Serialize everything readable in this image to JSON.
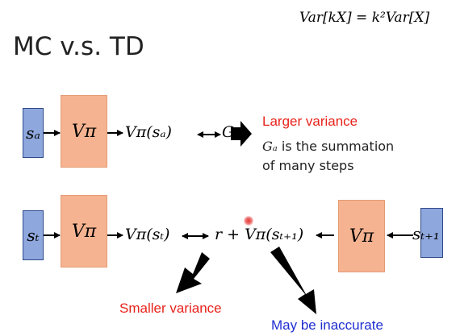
{
  "slide": {
    "title": "MC v.s. TD",
    "formula": "Var[kX] = k²Var[X]"
  },
  "mc_row": {
    "input_state": "sₐ",
    "network": "Vπ",
    "output": "Vπ(sₐ)",
    "target": "Gₐ",
    "result_heading": "Larger variance",
    "result_note_var": "Gₐ",
    "result_note_line1": " is the summation",
    "result_note_line2": "of many steps"
  },
  "td_row": {
    "input_state": "sₜ",
    "network": "Vπ",
    "output": "Vπ(sₜ)",
    "target": "r + Vπ(sₜ₊₁)",
    "next_state": "sₜ₊₁",
    "next_network": "Vπ",
    "note_left": "Smaller variance",
    "note_right": "May be inaccurate"
  },
  "colors": {
    "state_box": "#8ea7dd",
    "network_box": "#f6b391",
    "emphasis_red": "#e8231b",
    "emphasis_blue": "#1f2ed1"
  }
}
